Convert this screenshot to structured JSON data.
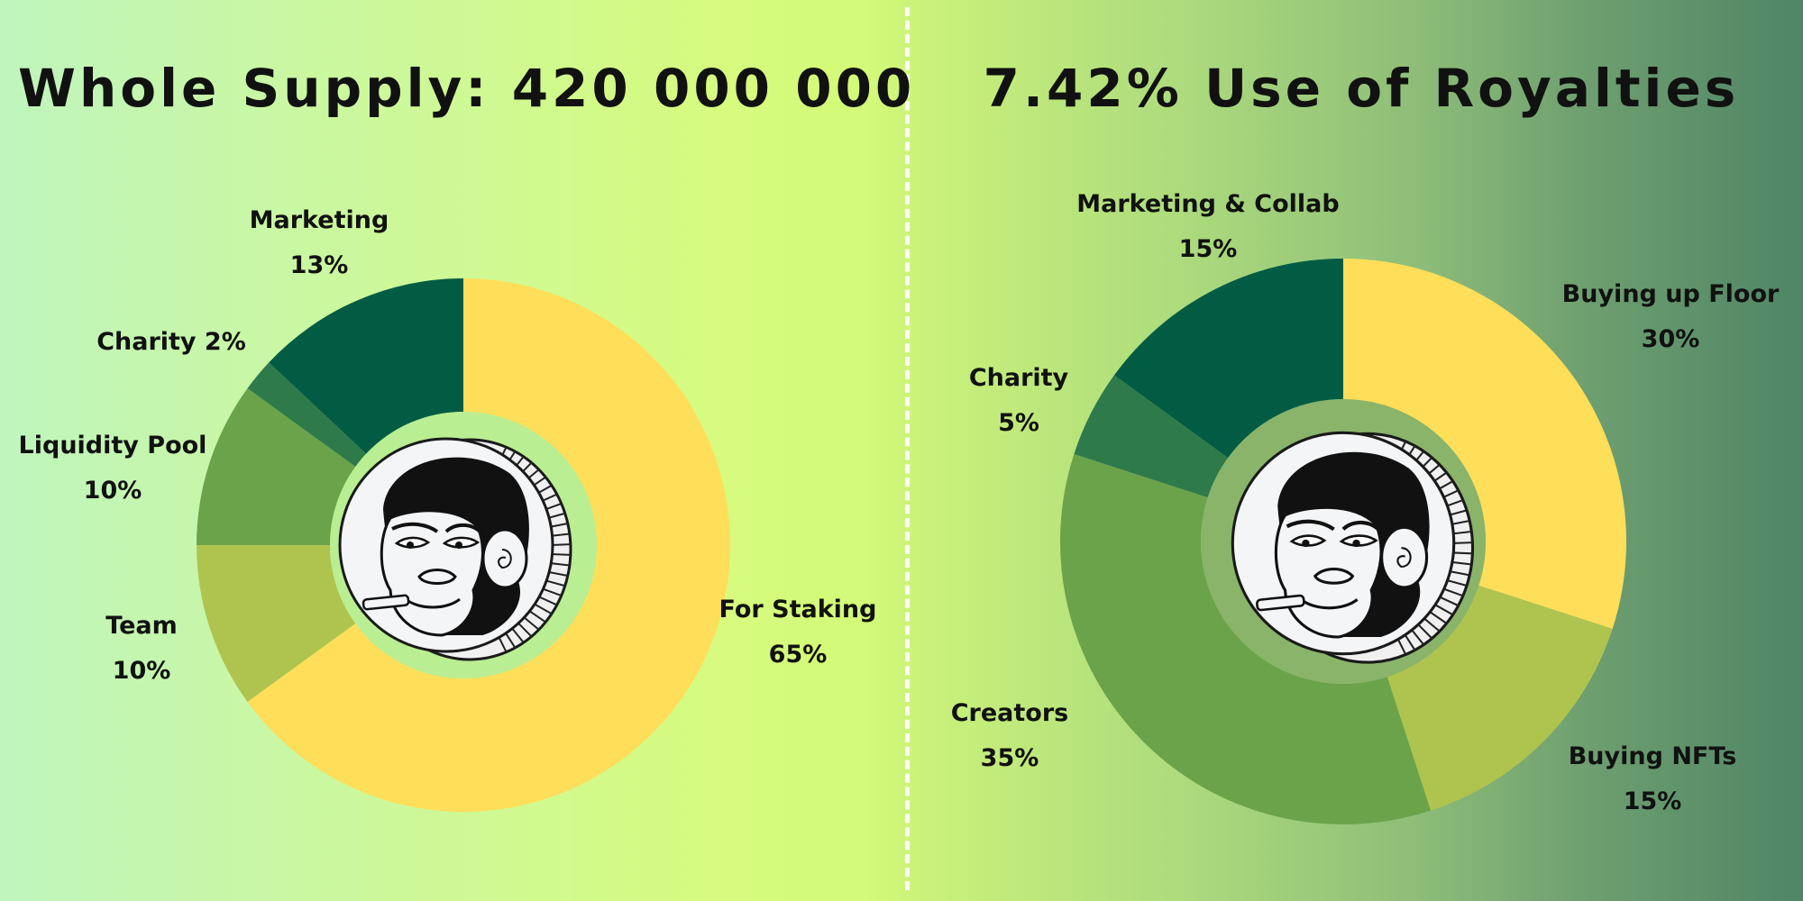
{
  "titles": {
    "left": "Whole Supply: 420 000 000",
    "right": "7.42% Use of Royalties"
  },
  "colors": {
    "yellow": "#ffde5a",
    "olive": "#afc44f",
    "green": "#6aa34a",
    "midgreen": "#2f7a4b",
    "darkgreen": "#025c44"
  },
  "chart_data": [
    {
      "type": "pie",
      "title": "Whole Supply: 420 000 000",
      "categories": [
        "For Staking",
        "Team",
        "Liquidity Pool",
        "Charity",
        "Marketing"
      ],
      "values": [
        65,
        10,
        10,
        2,
        13
      ],
      "unit": "%",
      "labels": [
        {
          "lines": [
            "For Staking",
            "65%"
          ]
        },
        {
          "lines": [
            "Team",
            "10%"
          ]
        },
        {
          "lines": [
            "Liquidity Pool",
            "10%"
          ]
        },
        {
          "lines": [
            "Charity 2%"
          ]
        },
        {
          "lines": [
            "Marketing",
            "13%"
          ]
        }
      ],
      "colors": [
        "#ffde5a",
        "#afc44f",
        "#6aa34a",
        "#2f7a4b",
        "#025c44"
      ],
      "hole_color": "#b9ee92"
    },
    {
      "type": "pie",
      "title": "7.42% Use of Royalties",
      "categories": [
        "Buying up Floor",
        "Buying NFTs",
        "Creators",
        "Charity",
        "Marketing & Collab"
      ],
      "values": [
        30,
        15,
        35,
        5,
        15
      ],
      "unit": "%",
      "labels": [
        {
          "lines": [
            "Buying up Floor",
            "30%"
          ]
        },
        {
          "lines": [
            "Buying NFTs",
            "15%"
          ]
        },
        {
          "lines": [
            "Creators",
            "35%"
          ]
        },
        {
          "lines": [
            "Charity",
            "5%"
          ]
        },
        {
          "lines": [
            "Marketing & Collab",
            "15%"
          ]
        }
      ],
      "colors": [
        "#ffde5a",
        "#afc44f",
        "#6aa34a",
        "#2f7a4b",
        "#025c44"
      ],
      "hole_color": "#8ab46a"
    }
  ]
}
